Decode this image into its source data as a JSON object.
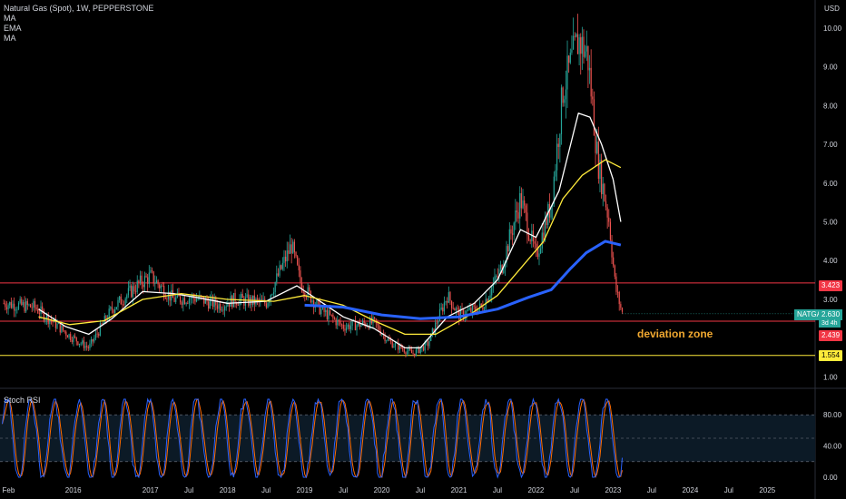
{
  "header": {
    "symbol_line": "Natural Gas (Spot), 1W, PEPPERSTONE",
    "indicators": [
      "MA",
      "EMA",
      "MA"
    ]
  },
  "currency": "USD",
  "rsi_title": "Stoch RSI",
  "annotation": "deviation zone",
  "price_tag": {
    "symbol": "NATGAS",
    "price": "2.630",
    "countdown": "3d 4h"
  },
  "levels": [
    {
      "value": 3.423,
      "label": "3.423",
      "color": "#f23645"
    },
    {
      "value": 2.439,
      "label": "2.439",
      "color": "#f23645"
    },
    {
      "value": 1.554,
      "label": "1.554",
      "color": "#ffeb3b"
    }
  ],
  "chart_data": [
    {
      "type": "candlestick",
      "title": "Natural Gas (Spot), 1W, PEPPERSTONE",
      "ylabel": "USD",
      "ylim": [
        0.8,
        10.3
      ],
      "yticks": [
        "1.00",
        "2.00",
        "3.00",
        "4.00",
        "5.00",
        "6.00",
        "7.00",
        "8.00",
        "9.00",
        "10.00"
      ],
      "xticks": [
        "Feb",
        "2016",
        "2017",
        "Jul",
        "2018",
        "Jul",
        "2019",
        "Jul",
        "2020",
        "Jul",
        "2021",
        "Jul",
        "2022",
        "Jul",
        "2023",
        "Jul",
        "2024",
        "Jul",
        "2025"
      ],
      "xtick_values": [
        2015.08,
        2016.0,
        2017.0,
        2017.5,
        2018.0,
        2018.5,
        2019.0,
        2019.5,
        2020.0,
        2020.5,
        2021.0,
        2021.5,
        2022.0,
        2022.5,
        2023.0,
        2023.5,
        2024.0,
        2024.5,
        2025.0
      ],
      "xlim": [
        2015.05,
        2025.62
      ],
      "colors": {
        "up": "#26a69a",
        "down": "#ef5350"
      },
      "close_path": [
        [
          2015.08,
          2.9
        ],
        [
          2015.5,
          2.8
        ],
        [
          2015.96,
          2.05
        ],
        [
          2016.2,
          1.75
        ],
        [
          2016.5,
          2.75
        ],
        [
          2016.85,
          3.4
        ],
        [
          2017.0,
          3.6
        ],
        [
          2017.3,
          3.0
        ],
        [
          2017.55,
          3.05
        ],
        [
          2017.9,
          2.85
        ],
        [
          2018.1,
          3.0
        ],
        [
          2018.5,
          2.9
        ],
        [
          2018.83,
          4.4
        ],
        [
          2018.95,
          3.4
        ],
        [
          2019.2,
          2.75
        ],
        [
          2019.5,
          2.3
        ],
        [
          2019.9,
          2.4
        ],
        [
          2020.1,
          1.9
        ],
        [
          2020.4,
          1.6
        ],
        [
          2020.6,
          1.85
        ],
        [
          2020.85,
          3.1
        ],
        [
          2021.0,
          2.6
        ],
        [
          2021.3,
          2.8
        ],
        [
          2021.55,
          3.8
        ],
        [
          2021.8,
          5.6
        ],
        [
          2022.0,
          4.1
        ],
        [
          2022.2,
          5.5
        ],
        [
          2022.35,
          8.4
        ],
        [
          2022.55,
          9.7
        ],
        [
          2022.67,
          9.3
        ],
        [
          2022.8,
          6.6
        ],
        [
          2022.95,
          5.0
        ],
        [
          2023.03,
          3.3
        ],
        [
          2023.12,
          2.63
        ]
      ],
      "series": [
        {
          "name": "MA",
          "color": "#ffffff",
          "values": [
            [
              2015.55,
              2.75
            ],
            [
              2015.9,
              2.3
            ],
            [
              2016.2,
              2.1
            ],
            [
              2016.5,
              2.5
            ],
            [
              2016.9,
              3.2
            ],
            [
              2017.3,
              3.15
            ],
            [
              2017.6,
              3.05
            ],
            [
              2018.0,
              2.9
            ],
            [
              2018.5,
              2.95
            ],
            [
              2018.9,
              3.35
            ],
            [
              2019.2,
              2.95
            ],
            [
              2019.5,
              2.55
            ],
            [
              2019.9,
              2.25
            ],
            [
              2020.3,
              1.75
            ],
            [
              2020.5,
              1.75
            ],
            [
              2020.85,
              2.55
            ],
            [
              2021.2,
              2.9
            ],
            [
              2021.5,
              3.5
            ],
            [
              2021.8,
              4.8
            ],
            [
              2022.0,
              4.6
            ],
            [
              2022.3,
              5.8
            ],
            [
              2022.55,
              7.8
            ],
            [
              2022.7,
              7.7
            ],
            [
              2022.85,
              7.0
            ],
            [
              2023.0,
              6.1
            ],
            [
              2023.1,
              5.0
            ]
          ]
        },
        {
          "name": "EMA",
          "color": "#ffeb3b",
          "values": [
            [
              2015.55,
              2.55
            ],
            [
              2015.95,
              2.35
            ],
            [
              2016.4,
              2.45
            ],
            [
              2016.9,
              3.0
            ],
            [
              2017.4,
              3.15
            ],
            [
              2018.0,
              3.0
            ],
            [
              2018.6,
              2.95
            ],
            [
              2019.0,
              3.1
            ],
            [
              2019.5,
              2.85
            ],
            [
              2019.9,
              2.45
            ],
            [
              2020.3,
              2.1
            ],
            [
              2020.7,
              2.1
            ],
            [
              2021.1,
              2.55
            ],
            [
              2021.5,
              3.1
            ],
            [
              2021.8,
              3.8
            ],
            [
              2022.1,
              4.5
            ],
            [
              2022.35,
              5.6
            ],
            [
              2022.6,
              6.2
            ],
            [
              2022.9,
              6.6
            ],
            [
              2023.1,
              6.4
            ]
          ]
        },
        {
          "name": "MA",
          "color": "#2962ff",
          "values": [
            [
              2019.0,
              2.85
            ],
            [
              2019.5,
              2.8
            ],
            [
              2020.0,
              2.6
            ],
            [
              2020.5,
              2.5
            ],
            [
              2021.0,
              2.55
            ],
            [
              2021.5,
              2.75
            ],
            [
              2021.9,
              3.05
            ],
            [
              2022.2,
              3.25
            ],
            [
              2022.45,
              3.8
            ],
            [
              2022.65,
              4.2
            ],
            [
              2022.9,
              4.5
            ],
            [
              2023.1,
              4.4
            ]
          ]
        }
      ]
    },
    {
      "type": "line",
      "title": "Stoch RSI",
      "ylim": [
        0,
        100
      ],
      "yticks": [
        "0.00",
        "40.00",
        "80.00"
      ],
      "bands": [
        20,
        50,
        80
      ],
      "series": [
        {
          "name": "K",
          "color": "#2962ff"
        },
        {
          "name": "D",
          "color": "#ff6d00"
        }
      ]
    }
  ]
}
